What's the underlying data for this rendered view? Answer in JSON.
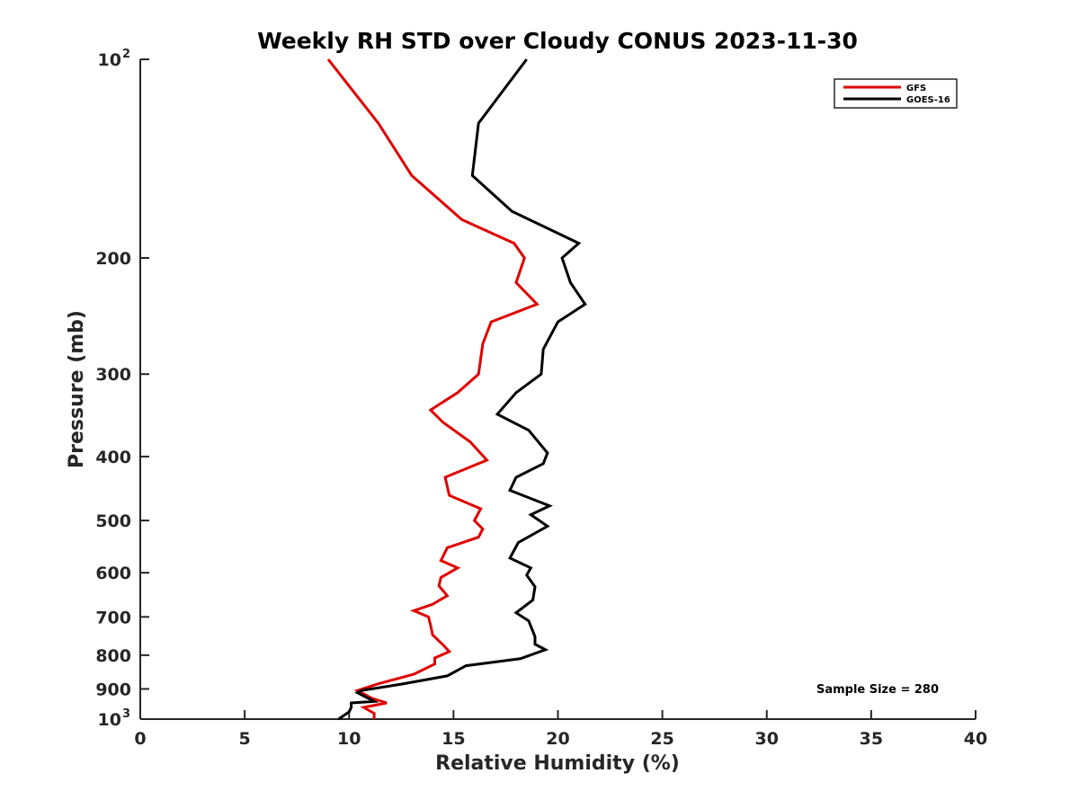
{
  "chart_data": {
    "type": "line",
    "title": "Weekly RH STD over Cloudy CONUS 2023-11-30",
    "xlabel": "Relative Humidity (%)",
    "ylabel": "Pressure (mb)",
    "xlim": [
      0,
      40
    ],
    "ylim": [
      100,
      1000
    ],
    "y_scale": "log",
    "y_reversed": true,
    "grid": false,
    "legend_position": "top-right",
    "x_ticks": [
      "0",
      "5",
      "10",
      "15",
      "20",
      "25",
      "30",
      "35",
      "40"
    ],
    "y_ticks": [
      {
        "value": 100,
        "label": "10",
        "sup": "2"
      },
      {
        "value": 200,
        "label": "200",
        "sup": ""
      },
      {
        "value": 300,
        "label": "300",
        "sup": ""
      },
      {
        "value": 400,
        "label": "400",
        "sup": ""
      },
      {
        "value": 500,
        "label": "500",
        "sup": ""
      },
      {
        "value": 600,
        "label": "600",
        "sup": ""
      },
      {
        "value": 700,
        "label": "700",
        "sup": ""
      },
      {
        "value": 800,
        "label": "800",
        "sup": ""
      },
      {
        "value": 900,
        "label": "900",
        "sup": ""
      },
      {
        "value": 1000,
        "label": "10",
        "sup": "3"
      }
    ],
    "annotation": "Sample Size = 280",
    "series": [
      {
        "name": "GFS",
        "color": "#e00000",
        "points": [
          [
            9.0,
            100
          ],
          [
            11.4,
            125
          ],
          [
            13.0,
            150
          ],
          [
            15.4,
            175
          ],
          [
            17.9,
            190
          ],
          [
            18.4,
            200
          ],
          [
            18.0,
            218
          ],
          [
            19.0,
            235
          ],
          [
            16.8,
            250
          ],
          [
            16.4,
            270
          ],
          [
            16.2,
            300
          ],
          [
            15.2,
            320
          ],
          [
            13.9,
            340
          ],
          [
            14.5,
            355
          ],
          [
            15.8,
            380
          ],
          [
            16.6,
            405
          ],
          [
            14.6,
            430
          ],
          [
            14.8,
            458
          ],
          [
            16.3,
            480
          ],
          [
            16.0,
            500
          ],
          [
            16.4,
            515
          ],
          [
            16.2,
            530
          ],
          [
            14.7,
            550
          ],
          [
            14.4,
            575
          ],
          [
            15.2,
            590
          ],
          [
            14.4,
            610
          ],
          [
            14.3,
            628
          ],
          [
            14.7,
            650
          ],
          [
            14.0,
            670
          ],
          [
            13.1,
            685
          ],
          [
            13.8,
            700
          ],
          [
            13.9,
            720
          ],
          [
            14.0,
            745
          ],
          [
            14.5,
            772
          ],
          [
            14.8,
            790
          ],
          [
            14.1,
            808
          ],
          [
            14.1,
            825
          ],
          [
            13.1,
            855
          ],
          [
            11.4,
            884
          ],
          [
            10.4,
            905
          ],
          [
            11.1,
            930
          ],
          [
            11.8,
            945
          ],
          [
            10.7,
            960
          ],
          [
            11.2,
            980
          ],
          [
            11.2,
            1000
          ]
        ]
      },
      {
        "name": "GOES-16",
        "color": "#000000",
        "points": [
          [
            18.5,
            100
          ],
          [
            16.2,
            125
          ],
          [
            15.9,
            150
          ],
          [
            17.8,
            170
          ],
          [
            21.0,
            190
          ],
          [
            20.2,
            200
          ],
          [
            20.6,
            218
          ],
          [
            21.3,
            235
          ],
          [
            20.0,
            250
          ],
          [
            19.3,
            275
          ],
          [
            19.2,
            300
          ],
          [
            18.0,
            320
          ],
          [
            17.1,
            345
          ],
          [
            18.6,
            365
          ],
          [
            19.5,
            395
          ],
          [
            19.3,
            410
          ],
          [
            18.0,
            430
          ],
          [
            17.7,
            450
          ],
          [
            19.6,
            475
          ],
          [
            18.7,
            490
          ],
          [
            19.5,
            510
          ],
          [
            18.1,
            540
          ],
          [
            17.7,
            570
          ],
          [
            18.7,
            590
          ],
          [
            18.5,
            605
          ],
          [
            18.9,
            630
          ],
          [
            18.8,
            660
          ],
          [
            18.0,
            690
          ],
          [
            18.6,
            710
          ],
          [
            18.9,
            750
          ],
          [
            18.9,
            770
          ],
          [
            19.4,
            785
          ],
          [
            18.2,
            810
          ],
          [
            15.6,
            830
          ],
          [
            14.7,
            860
          ],
          [
            12.5,
            885
          ],
          [
            10.6,
            905
          ],
          [
            10.4,
            912
          ],
          [
            11.2,
            940
          ],
          [
            10.1,
            945
          ],
          [
            10.1,
            960
          ],
          [
            10.0,
            975
          ],
          [
            9.5,
            1000
          ]
        ]
      }
    ]
  }
}
